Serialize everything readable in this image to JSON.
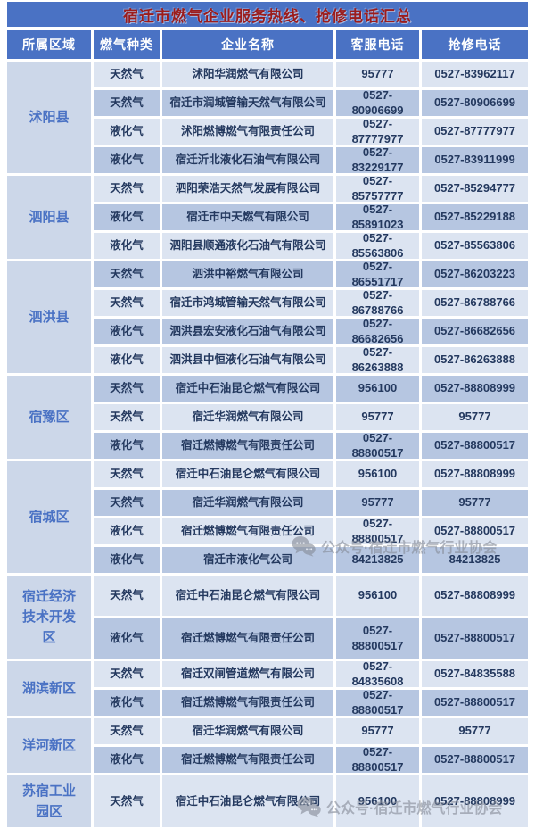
{
  "title": "宿迁市燃气企业服务热线、抢修电话汇总",
  "columns": [
    "所属区域",
    "燃气种类",
    "企业名称",
    "客服电话",
    "抢修电话"
  ],
  "sections": [
    {
      "region": "沭阳县",
      "rows": [
        {
          "type": "天然气",
          "company": "沭阳华润燃气有限公司",
          "service": "95777",
          "repair": "0527-83962117"
        },
        {
          "type": "天然气",
          "company": "宿迁市润城管输天然气有限公司",
          "service": "0527-80906699",
          "repair": "0527-80906699"
        },
        {
          "type": "液化气",
          "company": "沭阳燃博燃气有限责任公司",
          "service": "0527-87777977",
          "repair": "0527-87777977"
        },
        {
          "type": "液化气",
          "company": "宿迁沂北液化石油气有限公司",
          "service": "0527-83229177",
          "repair": "0527-83911999"
        }
      ]
    },
    {
      "region": "泗阳县",
      "rows": [
        {
          "type": "天然气",
          "company": "泗阳荣浩天然气发展有限公司",
          "service": "0527-85757777",
          "repair": "0527-85294777"
        },
        {
          "type": "液化气",
          "company": "宿迁市中天燃气有限公司",
          "service": "0527-85891023",
          "repair": "0527-85229188"
        },
        {
          "type": "液化气",
          "company": "泗阳县顺通液化石油气有限公司",
          "service": "0527-85563806",
          "repair": "0527-85563806"
        }
      ]
    },
    {
      "region": "泗洪县",
      "rows": [
        {
          "type": "天然气",
          "company": "泗洪中裕燃气有限公司",
          "service": "0527-86551717",
          "repair": "0527-86203223"
        },
        {
          "type": "天然气",
          "company": "宿迁市鸿城管输天然气有限公司",
          "service": "0527-86788766",
          "repair": "0527-86788766"
        },
        {
          "type": "液化气",
          "company": "泗洪县宏安液化石油气有限公司",
          "service": "0527-86682656",
          "repair": "0527-86682656"
        },
        {
          "type": "液化气",
          "company": "泗洪县中恒液化石油气有限公司",
          "service": "0527-86263888",
          "repair": "0527-86263888"
        }
      ]
    },
    {
      "region": "宿豫区",
      "rows": [
        {
          "type": "天然气",
          "company": "宿迁中石油昆仑燃气有限公司",
          "service": "956100",
          "repair": "0527-88808999"
        },
        {
          "type": "天然气",
          "company": "宿迁华润燃气有限公司",
          "service": "95777",
          "repair": "95777"
        },
        {
          "type": "液化气",
          "company": "宿迁燃博燃气有限责任公司",
          "service": "0527-88800517",
          "repair": "0527-88800517"
        }
      ]
    },
    {
      "region": "宿城区",
      "rows": [
        {
          "type": "天然气",
          "company": "宿迁中石油昆仑燃气有限公司",
          "service": "956100",
          "repair": "0527-88808999"
        },
        {
          "type": "天然气",
          "company": "宿迁华润燃气有限公司",
          "service": "95777",
          "repair": "95777"
        },
        {
          "type": "液化气",
          "company": "宿迁燃博燃气有限责任公司",
          "service": "0527-88800517",
          "repair": "0527-88800517"
        },
        {
          "type": "液化气",
          "company": "宿迁市液化气公司",
          "service": "84213825",
          "repair": "84213825"
        }
      ]
    },
    {
      "region": "宿迁经济技术开发区",
      "rows": [
        {
          "type": "天然气",
          "company": "宿迁中石油昆仑燃气有限公司",
          "service": "956100",
          "repair": "0527-88808999"
        },
        {
          "type": "液化气",
          "company": "宿迁燃博燃气有限责任公司",
          "service": "0527-88800517",
          "repair": "0527-88800517"
        }
      ]
    },
    {
      "region": "湖滨新区",
      "rows": [
        {
          "type": "天然气",
          "company": "宿迁双闸管道燃气有限公司",
          "service": "0527-84835608",
          "repair": "0527-84835588"
        },
        {
          "type": "液化气",
          "company": "宿迁燃博燃气有限责任公司",
          "service": "0527-88800517",
          "repair": "0527-88800517"
        }
      ]
    },
    {
      "region": "洋河新区",
      "rows": [
        {
          "type": "天然气",
          "company": "宿迁华润燃气有限公司",
          "service": "95777",
          "repair": "95777"
        },
        {
          "type": "液化气",
          "company": "宿迁燃博燃气有限责任公司",
          "service": "0527-88800517",
          "repair": "0527-88800517"
        }
      ]
    },
    {
      "region": "苏宿工业园区",
      "rows": [
        {
          "type": "天然气",
          "company": "宿迁中石油昆仑燃气有限公司",
          "service": "956100",
          "repair": "0527-88808999"
        }
      ]
    }
  ],
  "watermark": {
    "label": "公众号·宿迁市燃气行业协会",
    "icon": "wechat-official-account-icon"
  },
  "colors": {
    "accent_blue": "#4a72c4",
    "title_text_red": "#9b1c1c",
    "row_light": "#dce4f1",
    "row_dark": "#b6c6e1",
    "region_cell": "#ccd7e9",
    "cell_text": "#24395f",
    "watermark_gray": "#878d99"
  }
}
